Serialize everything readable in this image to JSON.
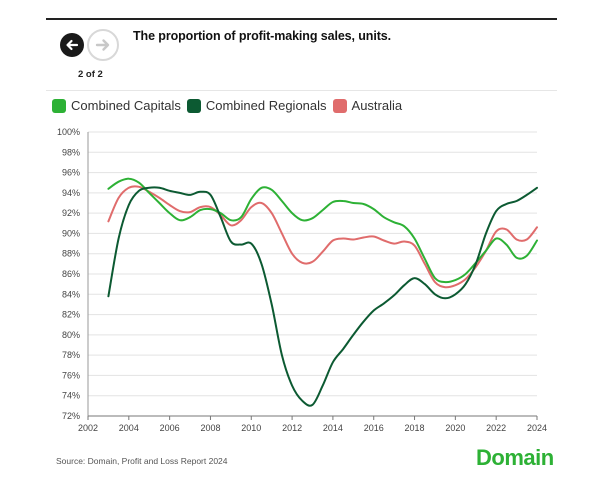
{
  "header": {
    "title": "The proportion of profit-making sales, units.",
    "pager": "2 of 2",
    "prev_icon": "arrow-left-icon",
    "next_icon": "arrow-right-icon"
  },
  "footer": {
    "source": "Source: Domain, Profit and Loss Report 2024",
    "logo": "Domain"
  },
  "colors": {
    "Combined Capitals": "#2db135",
    "Combined Regionals": "#0c5a32",
    "Australia": "#e06c6c"
  },
  "chart_data": {
    "type": "line",
    "title": "The proportion of profit-making sales, units.",
    "xlabel": "",
    "ylabel": "",
    "xlim": [
      2002,
      2024
    ],
    "ylim": [
      72,
      100
    ],
    "x_ticks": [
      "2002",
      "2004",
      "2006",
      "2008",
      "2010",
      "2012",
      "2014",
      "2016",
      "2018",
      "2020",
      "2022",
      "2024"
    ],
    "y_ticks": [
      "72%",
      "74%",
      "76%",
      "78%",
      "80%",
      "82%",
      "84%",
      "86%",
      "88%",
      "90%",
      "92%",
      "94%",
      "96%",
      "98%",
      "100%"
    ],
    "grid": true,
    "legend": "top-left",
    "series": [
      {
        "name": "Combined Capitals",
        "x": [
          2003,
          2003.5,
          2004,
          2004.5,
          2005,
          2005.5,
          2006,
          2006.5,
          2007,
          2007.5,
          2008,
          2008.5,
          2009,
          2009.5,
          2010,
          2010.5,
          2011,
          2011.5,
          2012,
          2012.5,
          2013,
          2013.5,
          2014,
          2014.5,
          2015,
          2015.5,
          2016,
          2016.5,
          2017,
          2017.5,
          2018,
          2018.5,
          2019,
          2019.5,
          2020,
          2020.5,
          2021,
          2021.5,
          2022,
          2022.5,
          2023,
          2023.5,
          2024
        ],
        "values": [
          94.4,
          95.1,
          95.4,
          95.0,
          94.0,
          93.0,
          92.0,
          91.3,
          91.6,
          92.3,
          92.4,
          92.0,
          91.3,
          91.6,
          93.4,
          94.5,
          94.3,
          93.2,
          92.0,
          91.3,
          91.5,
          92.3,
          93.1,
          93.2,
          93.0,
          92.9,
          92.4,
          91.6,
          91.1,
          90.7,
          89.5,
          87.5,
          85.6,
          85.2,
          85.4,
          86.0,
          87.1,
          88.3,
          89.5,
          88.9,
          87.6,
          87.8,
          89.3
        ]
      },
      {
        "name": "Combined Regionals",
        "x": [
          2003,
          2003.5,
          2004,
          2004.5,
          2005,
          2005.5,
          2006,
          2006.5,
          2007,
          2007.5,
          2008,
          2008.5,
          2009,
          2009.5,
          2010,
          2010.5,
          2011,
          2011.5,
          2012,
          2012.5,
          2013,
          2013.5,
          2014,
          2014.5,
          2015,
          2015.5,
          2016,
          2016.5,
          2017,
          2017.5,
          2018,
          2018.5,
          2019,
          2019.5,
          2020,
          2020.5,
          2021,
          2021.5,
          2022,
          2022.5,
          2023,
          2023.5,
          2024
        ],
        "values": [
          83.8,
          89.5,
          92.8,
          94.2,
          94.5,
          94.5,
          94.2,
          94.0,
          93.8,
          94.1,
          93.8,
          91.6,
          89.2,
          88.9,
          89.0,
          87.0,
          83.0,
          78.0,
          75.0,
          73.5,
          73.1,
          75.0,
          77.3,
          78.6,
          80.0,
          81.3,
          82.4,
          83.1,
          83.9,
          84.9,
          85.6,
          85.0,
          84.0,
          83.6,
          84.0,
          85.0,
          87.0,
          90.0,
          92.2,
          92.9,
          93.2,
          93.8,
          94.5
        ]
      },
      {
        "name": "Australia",
        "x": [
          2003,
          2003.5,
          2004,
          2004.5,
          2005,
          2005.5,
          2006,
          2006.5,
          2007,
          2007.5,
          2008,
          2008.5,
          2009,
          2009.5,
          2010,
          2010.5,
          2011,
          2011.5,
          2012,
          2012.5,
          2013,
          2013.5,
          2014,
          2014.5,
          2015,
          2015.5,
          2016,
          2016.5,
          2017,
          2017.5,
          2018,
          2018.5,
          2019,
          2019.5,
          2020,
          2020.5,
          2021,
          2021.5,
          2022,
          2022.5,
          2023,
          2023.5,
          2024
        ],
        "values": [
          91.2,
          93.5,
          94.5,
          94.6,
          94.1,
          93.5,
          92.8,
          92.2,
          92.1,
          92.6,
          92.6,
          91.8,
          90.8,
          91.3,
          92.6,
          93.0,
          92.0,
          90.0,
          88.0,
          87.1,
          87.2,
          88.2,
          89.3,
          89.5,
          89.4,
          89.6,
          89.7,
          89.3,
          89.0,
          89.2,
          88.8,
          87.0,
          85.2,
          84.7,
          84.9,
          85.5,
          86.7,
          88.3,
          90.2,
          90.4,
          89.4,
          89.4,
          90.6
        ]
      }
    ]
  }
}
